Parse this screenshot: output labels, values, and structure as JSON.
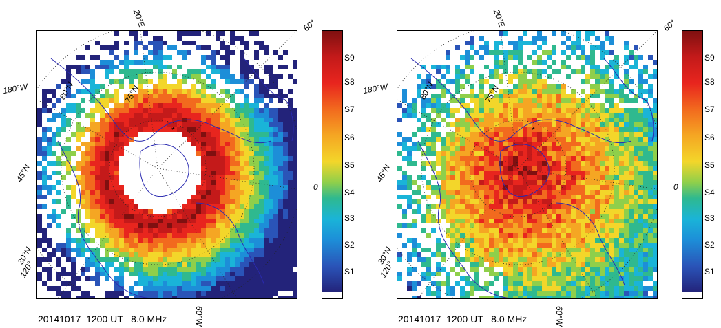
{
  "colors": {
    "coast": "#2a2ab0",
    "scale": [
      "#23237a",
      "#2a54b8",
      "#1d8ed8",
      "#1ab4d8",
      "#2fb98f",
      "#8fcf4b",
      "#f3d62a",
      "#f5a623",
      "#f26a1e",
      "#e8251e",
      "#c41a1a",
      "#7f1010"
    ]
  },
  "legend": {
    "ticks": [
      "S9",
      "S8",
      "S7",
      "S6",
      "S5",
      "S4",
      "S3",
      "S2",
      "S1"
    ]
  },
  "panels": [
    {
      "footer": "20141017  1200 UT   8.0 MHz",
      "labels": {
        "lon_top": "20°E",
        "lon_corner": "60°",
        "lon_left": "180°W",
        "lat_80": "80°N",
        "lat_75": "75°N",
        "lat_45": "45°N",
        "lat_30": "30°N",
        "lon_120": "120°",
        "lon_0": "0",
        "lon_bottom": "60°W"
      },
      "field": {
        "pattern": "ring",
        "center_level": "none"
      }
    },
    {
      "footer": "20141017  1200 UT   8.0 MHz",
      "labels": {
        "lon_top": "20°E",
        "lon_corner": "60°",
        "lon_left": "180°W",
        "lat_80": "80°N",
        "lat_75": "75°N",
        "lat_45": "45°N",
        "lat_30": "30°N",
        "lon_120": "120°",
        "lon_0": "0",
        "lon_bottom": "60°W"
      },
      "field": {
        "pattern": "filled",
        "center_level": "S9"
      }
    }
  ]
}
